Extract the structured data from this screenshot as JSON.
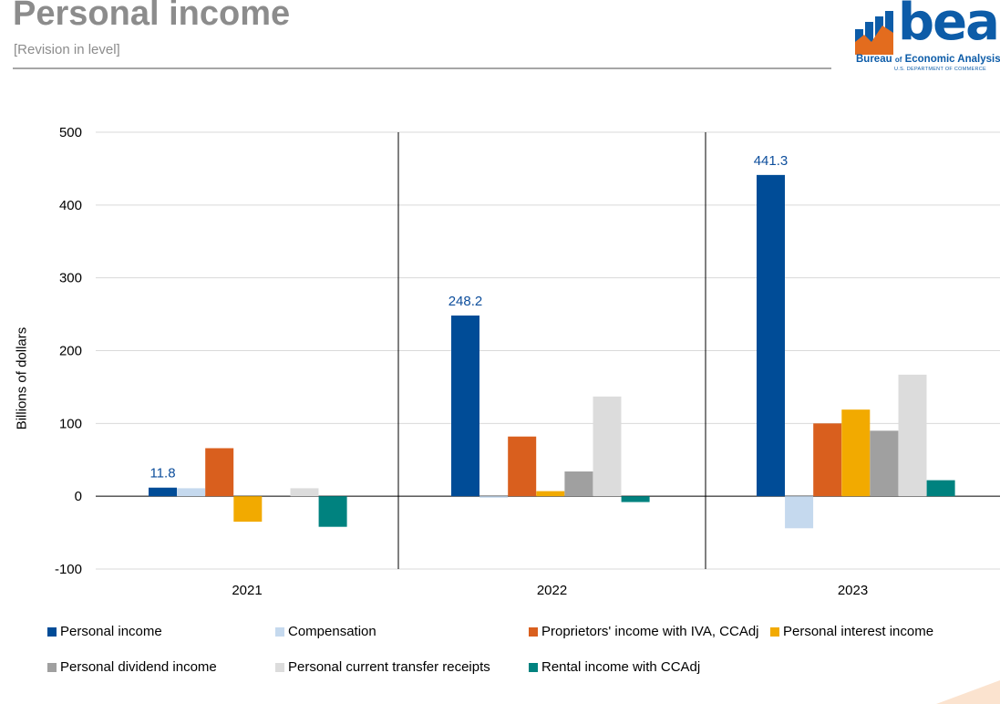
{
  "header": {
    "title": "Personal income",
    "subtitle": "[Revision in level]"
  },
  "logo": {
    "word": "bea",
    "line1_a": "Bureau ",
    "line1_of": "of",
    "line1_b": " Economic Analysis",
    "line2": "U.S. DEPARTMENT OF COMMERCE",
    "colors": {
      "primary": "#0d5ca8",
      "accent": "#e36c1e"
    }
  },
  "chart_data": {
    "type": "bar",
    "title": "",
    "xlabel": "",
    "ylabel": "Billions of dollars",
    "ylim": [
      -100,
      500
    ],
    "yticks": [
      -100,
      0,
      100,
      200,
      300,
      400,
      500
    ],
    "ytick_labels": [
      "-100",
      "0",
      "100",
      "200",
      "300",
      "400",
      "500"
    ],
    "grid": true,
    "legend_position": "bottom",
    "categories": [
      "2021",
      "2022",
      "2023"
    ],
    "series": [
      {
        "name": "Personal income",
        "color": "#004c97",
        "values": [
          11.8,
          248.2,
          441.3
        ]
      },
      {
        "name": "Compensation",
        "color": "#c5d9ee",
        "values": [
          11,
          -2,
          -44
        ]
      },
      {
        "name": "Proprietors' income with IVA, CCAdj",
        "color": "#d95f1e",
        "values": [
          66,
          82,
          100
        ]
      },
      {
        "name": "Personal interest income",
        "color": "#f2aa00",
        "values": [
          -35,
          7,
          119
        ]
      },
      {
        "name": "Personal dividend income",
        "color": "#a0a0a0",
        "values": [
          0,
          34,
          90
        ]
      },
      {
        "name": "Personal current transfer receipts",
        "color": "#dcdcdc",
        "values": [
          11,
          137,
          167
        ]
      },
      {
        "name": "Rental income with CCAdj",
        "color": "#00827f",
        "values": [
          -42,
          -8,
          22
        ]
      }
    ],
    "data_labels": [
      {
        "series": 0,
        "category": 0,
        "text": "11.8"
      },
      {
        "series": 0,
        "category": 1,
        "text": "248.2"
      },
      {
        "series": 0,
        "category": 2,
        "text": "441.3"
      }
    ]
  }
}
